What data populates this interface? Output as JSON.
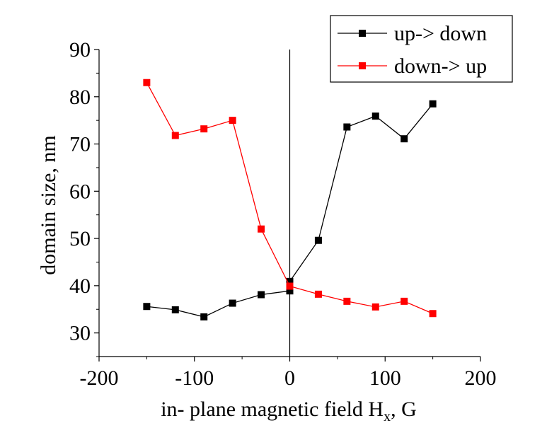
{
  "chart_data": {
    "type": "line",
    "title": "",
    "xlabel": "in- plane magnetic field H",
    "xlabel_sub": "x",
    "xlabel_suffix": ", G",
    "ylabel": "domain size, nm",
    "xlim": [
      -200,
      200
    ],
    "ylim": [
      25,
      90
    ],
    "xticks": [
      -200,
      -100,
      0,
      100,
      200
    ],
    "yticks": [
      30,
      40,
      50,
      60,
      70,
      80,
      90
    ],
    "grid": false,
    "legend_position": "top-right",
    "vertical_reference_line_x": 0,
    "series": [
      {
        "name": "up-> down",
        "color": "#000000",
        "x": [
          -150,
          -120,
          -90,
          -60,
          -30,
          0,
          0,
          30,
          60,
          90,
          120,
          150
        ],
        "y": [
          35.6,
          34.9,
          33.4,
          36.3,
          38.1,
          38.9,
          40.9,
          49.6,
          73.6,
          75.9,
          71.1,
          78.5
        ]
      },
      {
        "name": "down-> up",
        "color": "#ff0000",
        "x": [
          -150,
          -120,
          -90,
          -60,
          -30,
          0,
          30,
          60,
          90,
          120,
          150
        ],
        "y": [
          83.0,
          71.8,
          73.2,
          75.0,
          52.0,
          39.9,
          38.2,
          36.7,
          35.5,
          36.7,
          34.1
        ]
      }
    ]
  }
}
